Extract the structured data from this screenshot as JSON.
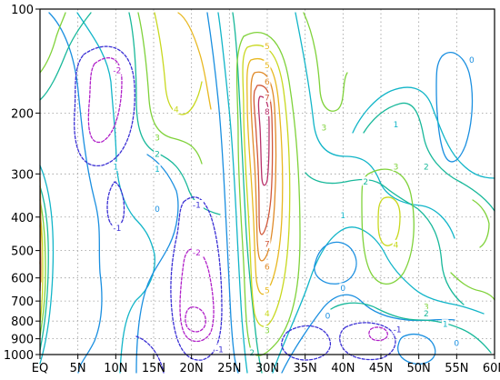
{
  "chart_data": {
    "type": "contour",
    "title": "",
    "xlabel": "",
    "ylabel": "",
    "x_ticks": [
      "EQ",
      "5N",
      "10N",
      "15N",
      "20N",
      "25N",
      "30N",
      "35N",
      "40N",
      "45N",
      "50N",
      "55N",
      "60N"
    ],
    "x_range": [
      0,
      60
    ],
    "y_ticks": [
      "100",
      "200",
      "300",
      "400",
      "500",
      "600",
      "700",
      "800",
      "900",
      "1000"
    ],
    "y_range": [
      100,
      1000
    ],
    "y_scale": "log",
    "grid": true,
    "negative_contours": "dashed",
    "contour_levels": [
      -2,
      -1,
      0,
      1,
      2,
      3,
      4,
      5,
      6,
      7,
      8
    ],
    "level_colors": {
      "-2": "#b01fc8",
      "-1": "#3a2fd4",
      "0": "#1a8fe0",
      "1": "#12b5c8",
      "2": "#18b89a",
      "3": "#7fd23a",
      "4": "#c8d81e",
      "5": "#e8b820",
      "6": "#e08a28",
      "7": "#d0583a",
      "8": "#b8306a"
    },
    "contour_labels": [
      {
        "lat": 10,
        "p": 150,
        "level": -2
      },
      {
        "lat": 10,
        "p": 285,
        "level": 1
      },
      {
        "lat": 10,
        "p": 430,
        "level": -1
      },
      {
        "lat": 15.5,
        "p": 235,
        "level": 3
      },
      {
        "lat": 15.5,
        "p": 262,
        "level": 2
      },
      {
        "lat": 15.5,
        "p": 290,
        "level": 1
      },
      {
        "lat": 15.5,
        "p": 378,
        "level": 0
      },
      {
        "lat": 18,
        "p": 195,
        "level": 4
      },
      {
        "lat": 20.5,
        "p": 368,
        "level": -1
      },
      {
        "lat": 20.5,
        "p": 505,
        "level": -2
      },
      {
        "lat": 23.5,
        "p": 965,
        "level": -1
      },
      {
        "lat": 28,
        "p": 985,
        "level": 2
      },
      {
        "lat": 30,
        "p": 128,
        "level": 5
      },
      {
        "lat": 30,
        "p": 145,
        "level": 5
      },
      {
        "lat": 30,
        "p": 162,
        "level": 6
      },
      {
        "lat": 30,
        "p": 180,
        "level": 7
      },
      {
        "lat": 30,
        "p": 198,
        "level": 8
      },
      {
        "lat": 30,
        "p": 478,
        "level": 7
      },
      {
        "lat": 30,
        "p": 555,
        "level": 6
      },
      {
        "lat": 30,
        "p": 650,
        "level": 5
      },
      {
        "lat": 30,
        "p": 760,
        "level": 4
      },
      {
        "lat": 30,
        "p": 850,
        "level": 3
      },
      {
        "lat": 37.5,
        "p": 220,
        "level": 3
      },
      {
        "lat": 38,
        "p": 770,
        "level": 0
      },
      {
        "lat": 40,
        "p": 395,
        "level": 1
      },
      {
        "lat": 40,
        "p": 640,
        "level": 0
      },
      {
        "lat": 43,
        "p": 315,
        "level": 2
      },
      {
        "lat": 47,
        "p": 215,
        "level": 1
      },
      {
        "lat": 47,
        "p": 285,
        "level": 3
      },
      {
        "lat": 47,
        "p": 480,
        "level": 4
      },
      {
        "lat": 47,
        "p": 845,
        "level": -1
      },
      {
        "lat": 51,
        "p": 285,
        "level": 2
      },
      {
        "lat": 51,
        "p": 725,
        "level": 3
      },
      {
        "lat": 51,
        "p": 760,
        "level": 2
      },
      {
        "lat": 53.5,
        "p": 815,
        "level": 1
      },
      {
        "lat": 55,
        "p": 925,
        "level": 0
      },
      {
        "lat": 57,
        "p": 140,
        "level": 0
      }
    ]
  }
}
